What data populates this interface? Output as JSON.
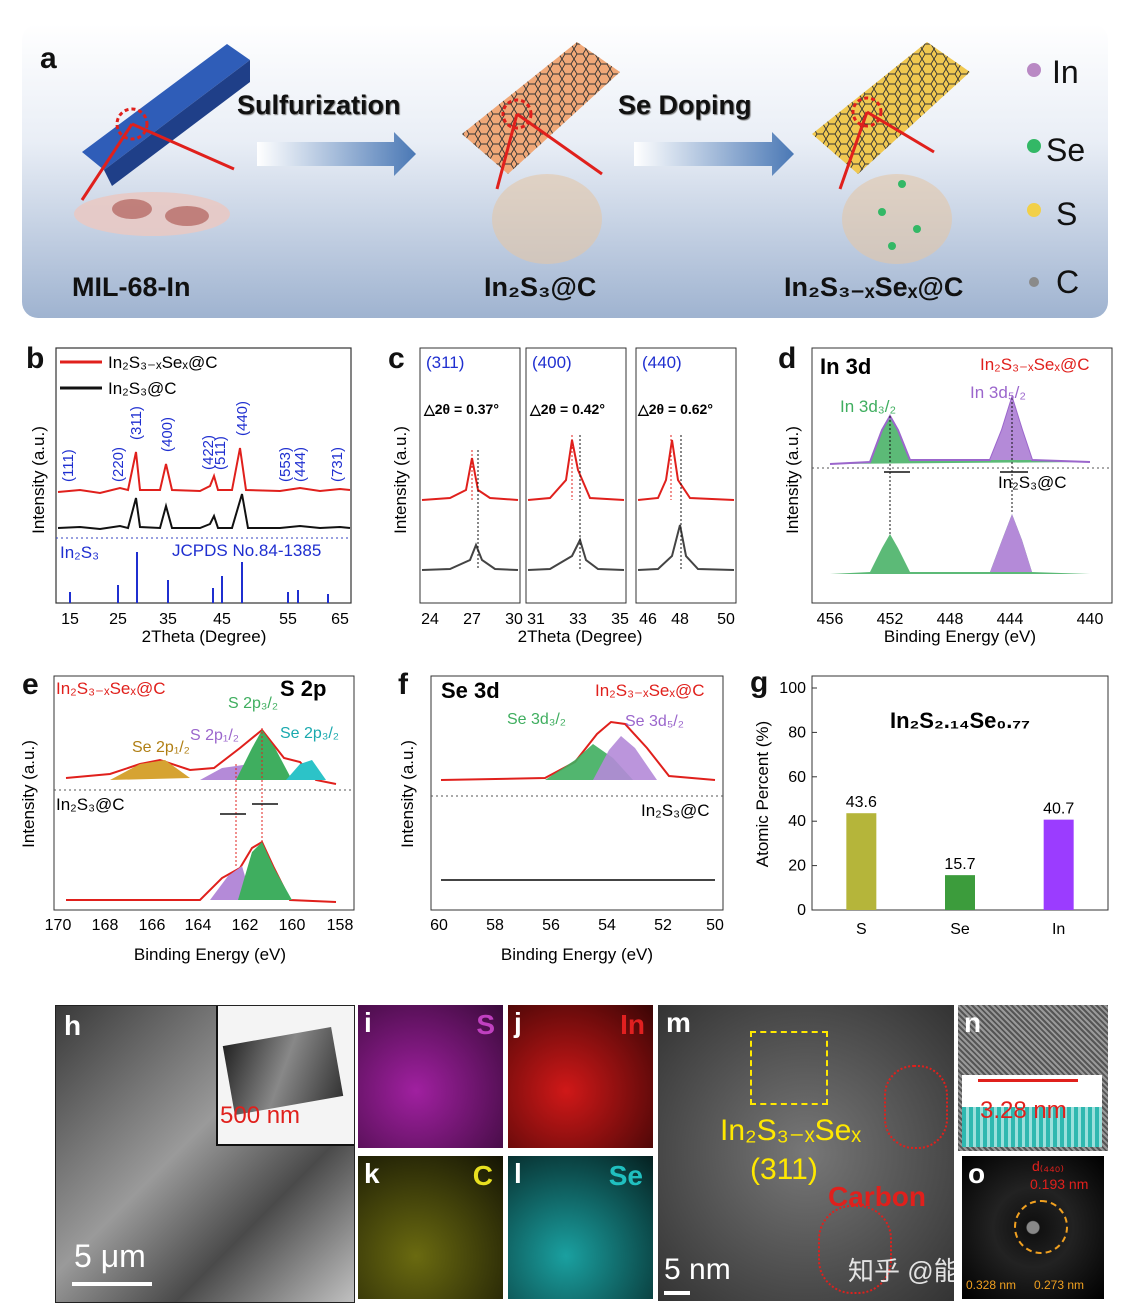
{
  "panel_a": {
    "letter": "a",
    "step1": "Sulfurization",
    "step2": "Se Doping",
    "stage1": "MIL-68-In",
    "stage2": "In₂S₃@C",
    "stage3": "In₂S₃₋ₓSeₓ@C",
    "legend": [
      "In",
      "Se",
      "S",
      "C"
    ],
    "colors": {
      "In": "#b989c4",
      "Se": "#33b866",
      "S": "#f2d048",
      "C": "#9a9a9a",
      "arrow": "#4a78b5",
      "rod": "#2f5db8"
    }
  },
  "panel_b": {
    "letter": "b",
    "legend": [
      "In₂S₃₋ₓSeₓ@C",
      "In₂S₃@C"
    ],
    "ref_label": "In₂S₃",
    "ref_card": "JCPDS No.84-1385",
    "peaks": [
      "(111)",
      "(220)",
      "(311)",
      "(400)",
      "(422)",
      "(511)",
      "(440)",
      "(553)",
      "(444)",
      "(731)"
    ],
    "xlabel": "2Theta (Degree)",
    "ylabel": "Intensity (a.u.)",
    "xticks": [
      "15",
      "25",
      "35",
      "45",
      "55",
      "65"
    ]
  },
  "panel_c": {
    "letter": "c",
    "subplots": [
      {
        "plane": "(311)",
        "shift": "△2θ = 0.37°",
        "xticks": [
          "24",
          "27",
          "30"
        ]
      },
      {
        "plane": "(400)",
        "shift": "△2θ = 0.42°",
        "xticks": [
          "31",
          "33",
          "35"
        ]
      },
      {
        "plane": "(440)",
        "shift": "△2θ = 0.62°",
        "xticks": [
          "46",
          "48",
          "50"
        ]
      }
    ],
    "xlabel": "2Theta (Degree)",
    "ylabel": "Intensity (a.u.)"
  },
  "panel_d": {
    "letter": "d",
    "title": "In 3d",
    "top_label": "In₂S₃₋ₓSeₓ@C",
    "bottom_label": "In₂S₃@C",
    "peak1": "In 3d₃/₂",
    "peak2": "In 3d₅/₂",
    "xlabel": "Binding Energy (eV)",
    "ylabel": "Intensity (a.u.)",
    "xticks": [
      "456",
      "452",
      "448",
      "444",
      "440"
    ]
  },
  "panel_e": {
    "letter": "e",
    "title": "S 2p",
    "top_label": "In₂S₃₋ₓSeₓ@C",
    "bottom_label": "In₂S₃@C",
    "peaks": [
      "Se 2p₁/₂",
      "S 2p₁/₂",
      "S 2p₃/₂",
      "Se 2p₃/₂"
    ],
    "xlabel": "Binding Energy (eV)",
    "ylabel": "Intensity (a.u.)",
    "xticks": [
      "170",
      "168",
      "166",
      "164",
      "162",
      "160",
      "158"
    ]
  },
  "panel_f": {
    "letter": "f",
    "title": "Se 3d",
    "top_label": "In₂S₃₋ₓSeₓ@C",
    "bottom_label": "In₂S₃@C",
    "peaks": [
      "Se 3d₃/₂",
      "Se 3d₅/₂"
    ],
    "xlabel": "Binding Energy (eV)",
    "ylabel": "Intensity (a.u.)",
    "xticks": [
      "60",
      "58",
      "56",
      "54",
      "52",
      "50"
    ]
  },
  "panel_g": {
    "letter": "g",
    "chart_data": {
      "type": "bar",
      "title": "In₂S₂.₁₄Se₀.₇₇",
      "categories": [
        "S",
        "Se",
        "In"
      ],
      "values": [
        43.6,
        15.7,
        40.7
      ],
      "value_labels": [
        "43.6",
        "15.7",
        "40.7"
      ],
      "ylabel": "Atomic Percent (%)",
      "xlabel": "",
      "ylim": [
        0,
        100
      ],
      "yticks": [
        "0",
        "20",
        "40",
        "60",
        "80",
        "100"
      ],
      "colors": [
        "#b5b53a",
        "#3c9c3c",
        "#9b3cff"
      ]
    }
  },
  "micro": {
    "h": {
      "letter": "h",
      "scale": "5 μm",
      "inset_scale": "500 nm"
    },
    "i": {
      "letter": "i",
      "element": "S"
    },
    "j": {
      "letter": "j",
      "element": "In"
    },
    "k": {
      "letter": "k",
      "element": "C"
    },
    "l": {
      "letter": "l",
      "element": "Se"
    },
    "m": {
      "letter": "m",
      "phase": "In₂S₃₋ₓSeₓ",
      "plane": "(311)",
      "carbon": "Carbon",
      "scale": "5 nm"
    },
    "n": {
      "letter": "n",
      "spacing": "3.28 nm"
    },
    "o": {
      "letter": "o",
      "d_label": "d₍₄₄₀₎",
      "d_value": "0.193 nm",
      "extra1": "0.328 nm",
      "extra2": "0.273 nm"
    },
    "watermark": "知乎 @能源学人"
  }
}
